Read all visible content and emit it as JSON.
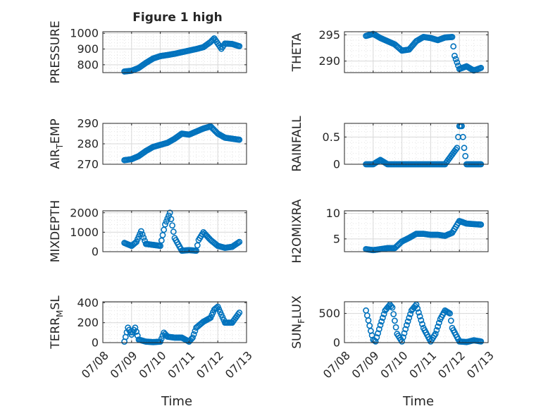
{
  "figure": {
    "title": "Figure 1 high",
    "marker_color": "#0072BD",
    "axis_color": "#262626",
    "grid_color": "#d9d9d9"
  },
  "chart_data": [
    {
      "type": "scatter",
      "ylabel": "PRESSURE",
      "xlabel": "",
      "xlim": [
        "07/08",
        "07/13"
      ],
      "xticks": [
        "07/08",
        "07/09",
        "07/10",
        "07/11",
        "07/12",
        "07/13"
      ],
      "ylim": [
        750,
        1010
      ],
      "yticks": [
        800,
        900,
        1000
      ],
      "grid": true,
      "x": [
        "07/08 18:00",
        "07/09 00:00",
        "07/09 06:00",
        "07/09 12:00",
        "07/09 18:00",
        "07/10 00:00",
        "07/10 06:00",
        "07/10 12:00",
        "07/10 18:00",
        "07/11 00:00",
        "07/11 06:00",
        "07/11 12:00",
        "07/11 18:00",
        "07/11 21:00",
        "07/12 00:00",
        "07/12 03:00",
        "07/12 06:00",
        "07/12 12:00",
        "07/12 18:00"
      ],
      "y": [
        757,
        762,
        780,
        812,
        840,
        855,
        862,
        870,
        880,
        890,
        900,
        912,
        945,
        968,
        935,
        902,
        935,
        932,
        918
      ]
    },
    {
      "type": "scatter",
      "ylabel": "THETA",
      "xlabel": "",
      "xlim": [
        "07/08",
        "07/13"
      ],
      "xticks": [
        "07/08",
        "07/09",
        "07/10",
        "07/11",
        "07/12",
        "07/13"
      ],
      "ylim": [
        287.8,
        295.6
      ],
      "yticks": [
        290,
        295
      ],
      "grid": true,
      "x": [
        "07/08 18:00",
        "07/09 00:00",
        "07/09 06:00",
        "07/09 12:00",
        "07/09 18:00",
        "07/10 00:00",
        "07/10 06:00",
        "07/10 12:00",
        "07/10 18:00",
        "07/11 00:00",
        "07/11 06:00",
        "07/11 12:00",
        "07/11 18:00",
        "07/11 20:00",
        "07/12 00:00",
        "07/12 06:00",
        "07/12 12:00",
        "07/12 18:00"
      ],
      "y": [
        294.8,
        295.2,
        294.4,
        293.8,
        293.2,
        292.0,
        292.2,
        293.8,
        294.6,
        294.4,
        294.0,
        294.5,
        294.6,
        291.0,
        288.5,
        289.0,
        288.2,
        288.7
      ]
    },
    {
      "type": "scatter",
      "ylabel": "AIR_TEMP",
      "xlabel": "",
      "xlim": [
        "07/08",
        "07/13"
      ],
      "xticks": [
        "07/08",
        "07/09",
        "07/10",
        "07/11",
        "07/12",
        "07/13"
      ],
      "ylim": [
        270,
        290
      ],
      "yticks": [
        270,
        280,
        290
      ],
      "grid": true,
      "x": [
        "07/08 18:00",
        "07/09 00:00",
        "07/09 06:00",
        "07/09 12:00",
        "07/09 18:00",
        "07/10 00:00",
        "07/10 06:00",
        "07/10 12:00",
        "07/10 18:00",
        "07/11 00:00",
        "07/11 06:00",
        "07/11 12:00",
        "07/11 18:00",
        "07/12 00:00",
        "07/12 06:00",
        "07/12 12:00",
        "07/12 18:00"
      ],
      "y": [
        272.0,
        272.5,
        274.0,
        276.5,
        278.5,
        279.5,
        280.5,
        282.5,
        285.0,
        284.5,
        286.0,
        287.5,
        288.5,
        285.0,
        283.0,
        282.5,
        282.0
      ]
    },
    {
      "type": "scatter",
      "ylabel": "RAINFALL",
      "xlabel": "",
      "xlim": [
        "07/08",
        "07/13"
      ],
      "xticks": [
        "07/08",
        "07/09",
        "07/10",
        "07/11",
        "07/12",
        "07/13"
      ],
      "ylim": [
        0,
        0.75
      ],
      "yticks": [
        0,
        0.5
      ],
      "grid": true,
      "x": [
        "07/08 18:00",
        "07/09 00:00",
        "07/09 06:00",
        "07/09 12:00",
        "07/10 00:00",
        "07/10 12:00",
        "07/11 00:00",
        "07/11 12:00",
        "07/11 22:00",
        "07/12 00:00",
        "07/12 02:00",
        "07/12 04:00",
        "07/12 06:00",
        "07/12 12:00",
        "07/12 18:00"
      ],
      "y": [
        0,
        0,
        0.08,
        0,
        0,
        0,
        0,
        0,
        0.3,
        0.7,
        0.7,
        0.3,
        0,
        0,
        0
      ]
    },
    {
      "type": "scatter",
      "ylabel": "MIXDEPTH",
      "xlabel": "",
      "xlim": [
        "07/08",
        "07/13"
      ],
      "xticks": [
        "07/08",
        "07/09",
        "07/10",
        "07/11",
        "07/12",
        "07/13"
      ],
      "ylim": [
        0,
        2100
      ],
      "yticks": [
        0,
        1000,
        2000
      ],
      "grid": true,
      "x": [
        "07/08 18:00",
        "07/09 00:00",
        "07/09 04:00",
        "07/09 08:00",
        "07/09 12:00",
        "07/10 00:00",
        "07/10 04:00",
        "07/10 08:00",
        "07/10 12:00",
        "07/10 18:00",
        "07/11 00:00",
        "07/11 06:00",
        "07/11 08:00",
        "07/11 12:00",
        "07/11 18:00",
        "07/12 00:00",
        "07/12 06:00",
        "07/12 12:00",
        "07/12 18:00"
      ],
      "y": [
        450,
        300,
        500,
        1050,
        400,
        300,
        1400,
        2000,
        700,
        50,
        80,
        50,
        600,
        1000,
        600,
        300,
        200,
        250,
        500
      ]
    },
    {
      "type": "scatter",
      "ylabel": "H2OMIXRA",
      "xlabel": "",
      "xlim": [
        "07/08",
        "07/13"
      ],
      "xticks": [
        "07/08",
        "07/09",
        "07/10",
        "07/11",
        "07/12",
        "07/13"
      ],
      "ylim": [
        2.5,
        10.5
      ],
      "yticks": [
        5,
        10
      ],
      "grid": true,
      "x": [
        "07/08 18:00",
        "07/09 00:00",
        "07/09 06:00",
        "07/09 12:00",
        "07/09 18:00",
        "07/10 00:00",
        "07/10 06:00",
        "07/10 12:00",
        "07/10 18:00",
        "07/11 00:00",
        "07/11 06:00",
        "07/11 12:00",
        "07/11 18:00",
        "07/12 00:00",
        "07/12 06:00",
        "07/12 12:00",
        "07/12 18:00"
      ],
      "y": [
        3.0,
        2.8,
        3.0,
        3.2,
        3.2,
        4.5,
        5.2,
        6.0,
        6.0,
        5.8,
        5.8,
        5.6,
        6.2,
        8.5,
        8.0,
        7.9,
        7.8
      ]
    },
    {
      "type": "scatter",
      "ylabel": "TERR_MSL",
      "xlabel": "Time",
      "xlim": [
        "07/08",
        "07/13"
      ],
      "xticks": [
        "07/08",
        "07/09",
        "07/10",
        "07/11",
        "07/12",
        "07/13"
      ],
      "ylim": [
        0,
        410
      ],
      "yticks": [
        0,
        200,
        400
      ],
      "grid": true,
      "x": [
        "07/08 18:00",
        "07/08 21:00",
        "07/09 00:00",
        "07/09 03:00",
        "07/09 06:00",
        "07/09 12:00",
        "07/09 18:00",
        "07/10 00:00",
        "07/10 03:00",
        "07/10 06:00",
        "07/10 12:00",
        "07/10 18:00",
        "07/11 00:00",
        "07/11 03:00",
        "07/11 06:00",
        "07/11 12:00",
        "07/11 18:00",
        "07/11 21:00",
        "07/12 00:00",
        "07/12 06:00",
        "07/12 12:00",
        "07/12 18:00"
      ],
      "y": [
        10,
        150,
        80,
        150,
        30,
        10,
        5,
        10,
        100,
        60,
        50,
        50,
        10,
        50,
        150,
        210,
        250,
        330,
        360,
        200,
        200,
        300
      ]
    },
    {
      "type": "scatter",
      "ylabel": "SUN_FLUX",
      "xlabel": "Time",
      "xlim": [
        "07/08",
        "07/13"
      ],
      "xticks": [
        "07/08",
        "07/09",
        "07/10",
        "07/11",
        "07/12",
        "07/13"
      ],
      "ylim": [
        0,
        700
      ],
      "yticks": [
        0,
        500
      ],
      "grid": true,
      "x": [
        "07/08 18:00",
        "07/08 20:00",
        "07/08 22:00",
        "07/09 00:00",
        "07/09 02:00",
        "07/09 06:00",
        "07/09 10:00",
        "07/09 14:00",
        "07/09 16:00",
        "07/09 20:00",
        "07/10 00:00",
        "07/10 04:00",
        "07/10 08:00",
        "07/10 12:00",
        "07/10 18:00",
        "07/11 00:00",
        "07/11 04:00",
        "07/11 08:00",
        "07/11 12:00",
        "07/11 16:00",
        "07/11 18:00",
        "07/12 00:00",
        "07/12 06:00",
        "07/12 12:00",
        "07/12 18:00"
      ],
      "y": [
        550,
        380,
        200,
        50,
        20,
        300,
        550,
        650,
        600,
        150,
        20,
        300,
        550,
        650,
        250,
        20,
        150,
        400,
        550,
        500,
        250,
        20,
        10,
        40,
        20
      ]
    }
  ]
}
